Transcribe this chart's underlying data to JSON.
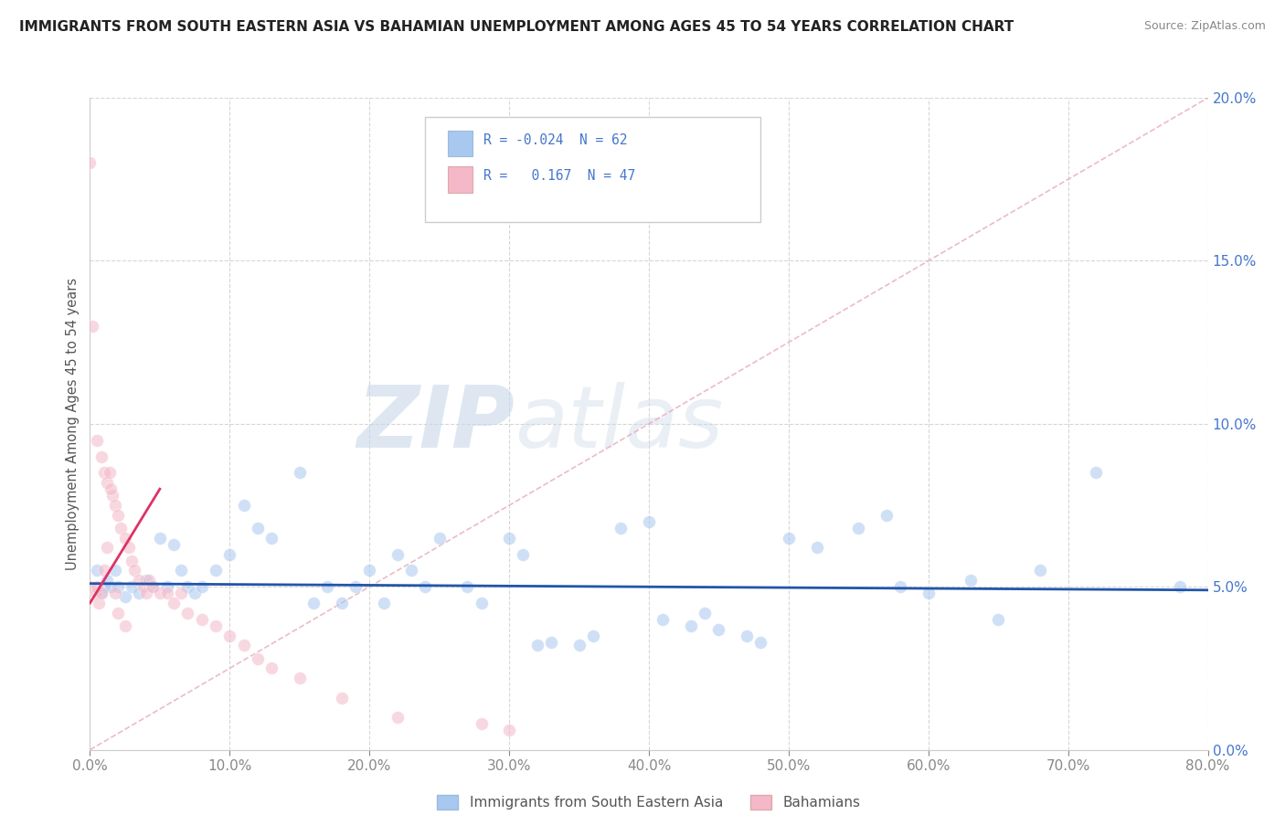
{
  "title": "IMMIGRANTS FROM SOUTH EASTERN ASIA VS BAHAMIAN UNEMPLOYMENT AMONG AGES 45 TO 54 YEARS CORRELATION CHART",
  "source": "Source: ZipAtlas.com",
  "ylabel": "Unemployment Among Ages 45 to 54 years",
  "watermark_zip": "ZIP",
  "watermark_atlas": "atlas",
  "legend_entries": [
    {
      "label": "Immigrants from South Eastern Asia",
      "color": "#a8c8f0",
      "R": "-0.024",
      "N": "62"
    },
    {
      "label": "Bahamians",
      "color": "#f0a8b8",
      "R": "0.167",
      "N": "47"
    }
  ],
  "xlim": [
    0.0,
    0.8
  ],
  "ylim": [
    0.0,
    0.2
  ],
  "xticks": [
    0.0,
    0.1,
    0.2,
    0.3,
    0.4,
    0.5,
    0.6,
    0.7,
    0.8
  ],
  "yticks": [
    0.0,
    0.05,
    0.1,
    0.15,
    0.2
  ],
  "blue_scatter_x": [
    0.005,
    0.008,
    0.01,
    0.012,
    0.015,
    0.018,
    0.02,
    0.025,
    0.03,
    0.035,
    0.04,
    0.045,
    0.05,
    0.055,
    0.06,
    0.065,
    0.07,
    0.075,
    0.08,
    0.09,
    0.1,
    0.11,
    0.12,
    0.13,
    0.15,
    0.16,
    0.17,
    0.18,
    0.19,
    0.2,
    0.21,
    0.22,
    0.23,
    0.24,
    0.25,
    0.27,
    0.28,
    0.3,
    0.31,
    0.32,
    0.33,
    0.35,
    0.36,
    0.38,
    0.4,
    0.41,
    0.43,
    0.44,
    0.45,
    0.47,
    0.48,
    0.5,
    0.52,
    0.55,
    0.57,
    0.58,
    0.6,
    0.63,
    0.65,
    0.68,
    0.72,
    0.78
  ],
  "blue_scatter_y": [
    0.055,
    0.048,
    0.05,
    0.052,
    0.05,
    0.055,
    0.05,
    0.047,
    0.05,
    0.048,
    0.052,
    0.05,
    0.065,
    0.05,
    0.063,
    0.055,
    0.05,
    0.048,
    0.05,
    0.055,
    0.06,
    0.075,
    0.068,
    0.065,
    0.085,
    0.045,
    0.05,
    0.045,
    0.05,
    0.055,
    0.045,
    0.06,
    0.055,
    0.05,
    0.065,
    0.05,
    0.045,
    0.065,
    0.06,
    0.032,
    0.033,
    0.032,
    0.035,
    0.068,
    0.07,
    0.04,
    0.038,
    0.042,
    0.037,
    0.035,
    0.033,
    0.065,
    0.062,
    0.068,
    0.072,
    0.05,
    0.048,
    0.052,
    0.04,
    0.055,
    0.085,
    0.05
  ],
  "pink_scatter_x": [
    0.0,
    0.0,
    0.002,
    0.004,
    0.005,
    0.006,
    0.008,
    0.01,
    0.012,
    0.014,
    0.016,
    0.018,
    0.02,
    0.022,
    0.025,
    0.028,
    0.03,
    0.032,
    0.035,
    0.038,
    0.04,
    0.042,
    0.045,
    0.05,
    0.055,
    0.06,
    0.065,
    0.07,
    0.08,
    0.09,
    0.1,
    0.11,
    0.12,
    0.13,
    0.15,
    0.18,
    0.22,
    0.28,
    0.3,
    0.005,
    0.008,
    0.01,
    0.012,
    0.015,
    0.018,
    0.02,
    0.025
  ],
  "pink_scatter_y": [
    0.18,
    0.05,
    0.13,
    0.048,
    0.095,
    0.045,
    0.09,
    0.085,
    0.082,
    0.085,
    0.078,
    0.075,
    0.072,
    0.068,
    0.065,
    0.062,
    0.058,
    0.055,
    0.052,
    0.05,
    0.048,
    0.052,
    0.05,
    0.048,
    0.048,
    0.045,
    0.048,
    0.042,
    0.04,
    0.038,
    0.035,
    0.032,
    0.028,
    0.025,
    0.022,
    0.016,
    0.01,
    0.008,
    0.006,
    0.05,
    0.048,
    0.055,
    0.062,
    0.08,
    0.048,
    0.042,
    0.038
  ],
  "blue_line_x": [
    0.0,
    0.8
  ],
  "blue_line_y": [
    0.051,
    0.049
  ],
  "pink_line_x": [
    0.0,
    0.05
  ],
  "pink_line_y": [
    0.045,
    0.08
  ],
  "diag_line_x": [
    0.0,
    0.8
  ],
  "diag_line_y": [
    0.0,
    0.2
  ],
  "background_color": "#ffffff",
  "grid_color": "#cccccc",
  "dot_size": 100,
  "dot_alpha": 0.55,
  "blue_color": "#a8c8f0",
  "pink_color": "#f4b8c8",
  "blue_line_color": "#2255aa",
  "pink_line_color": "#dd3366",
  "diag_line_color": "#e8aabb"
}
